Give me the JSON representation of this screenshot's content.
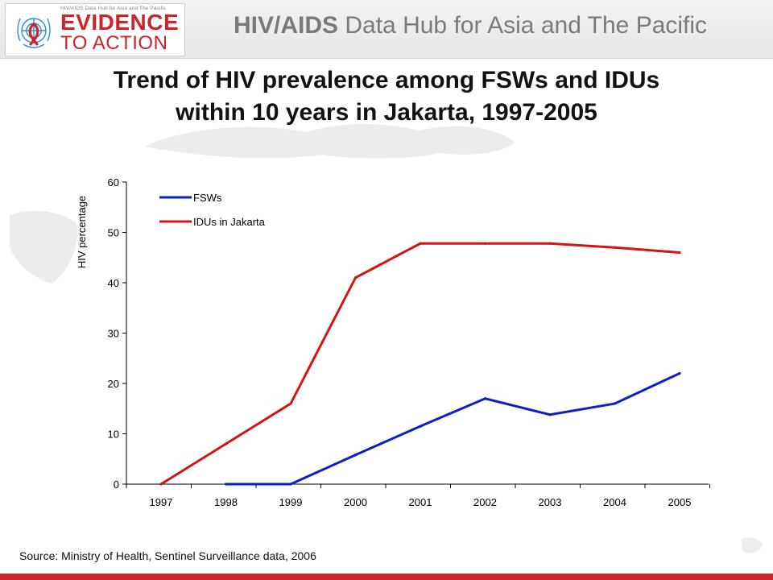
{
  "header": {
    "logo_small": "HIV/AIDS Data Hub for Asia and The Pacific",
    "logo_line1": "EVIDENCE",
    "logo_line2": "TO ACTION",
    "title_bold": "HIV/AIDS",
    "title_rest": " Data Hub for Asia and The Pacific"
  },
  "slide_title_line1": "Trend of HIV prevalence among FSWs and IDUs",
  "slide_title_line2": "within 10 years in Jakarta, 1997-2005",
  "source": "Source: Ministry of Health, Sentinel Surveillance data, 2006",
  "colors": {
    "accent": "#c9252b",
    "fsw": "#0f1fc8",
    "idu": "#d41414"
  },
  "chart_data": {
    "type": "line",
    "title": "",
    "xlabel": "",
    "ylabel": "HIV percentage",
    "categories": [
      "1997",
      "1998",
      "1999",
      "2000",
      "2001",
      "2002",
      "2003",
      "2004",
      "2005"
    ],
    "ylim": [
      0,
      60
    ],
    "yticks": [
      "0",
      "10",
      "20",
      "30",
      "40",
      "50",
      "60"
    ],
    "grid": false,
    "legend": "top-left",
    "series": [
      {
        "name": "FSWs",
        "color": "#0f1fc8",
        "values": [
          null,
          0,
          0,
          5.8,
          11.5,
          17,
          13.8,
          16,
          22
        ]
      },
      {
        "name": "IDUs in Jakarta",
        "color": "#d41414",
        "values": [
          0,
          8,
          16,
          41,
          47.8,
          47.8,
          47.8,
          47,
          46
        ]
      }
    ]
  }
}
